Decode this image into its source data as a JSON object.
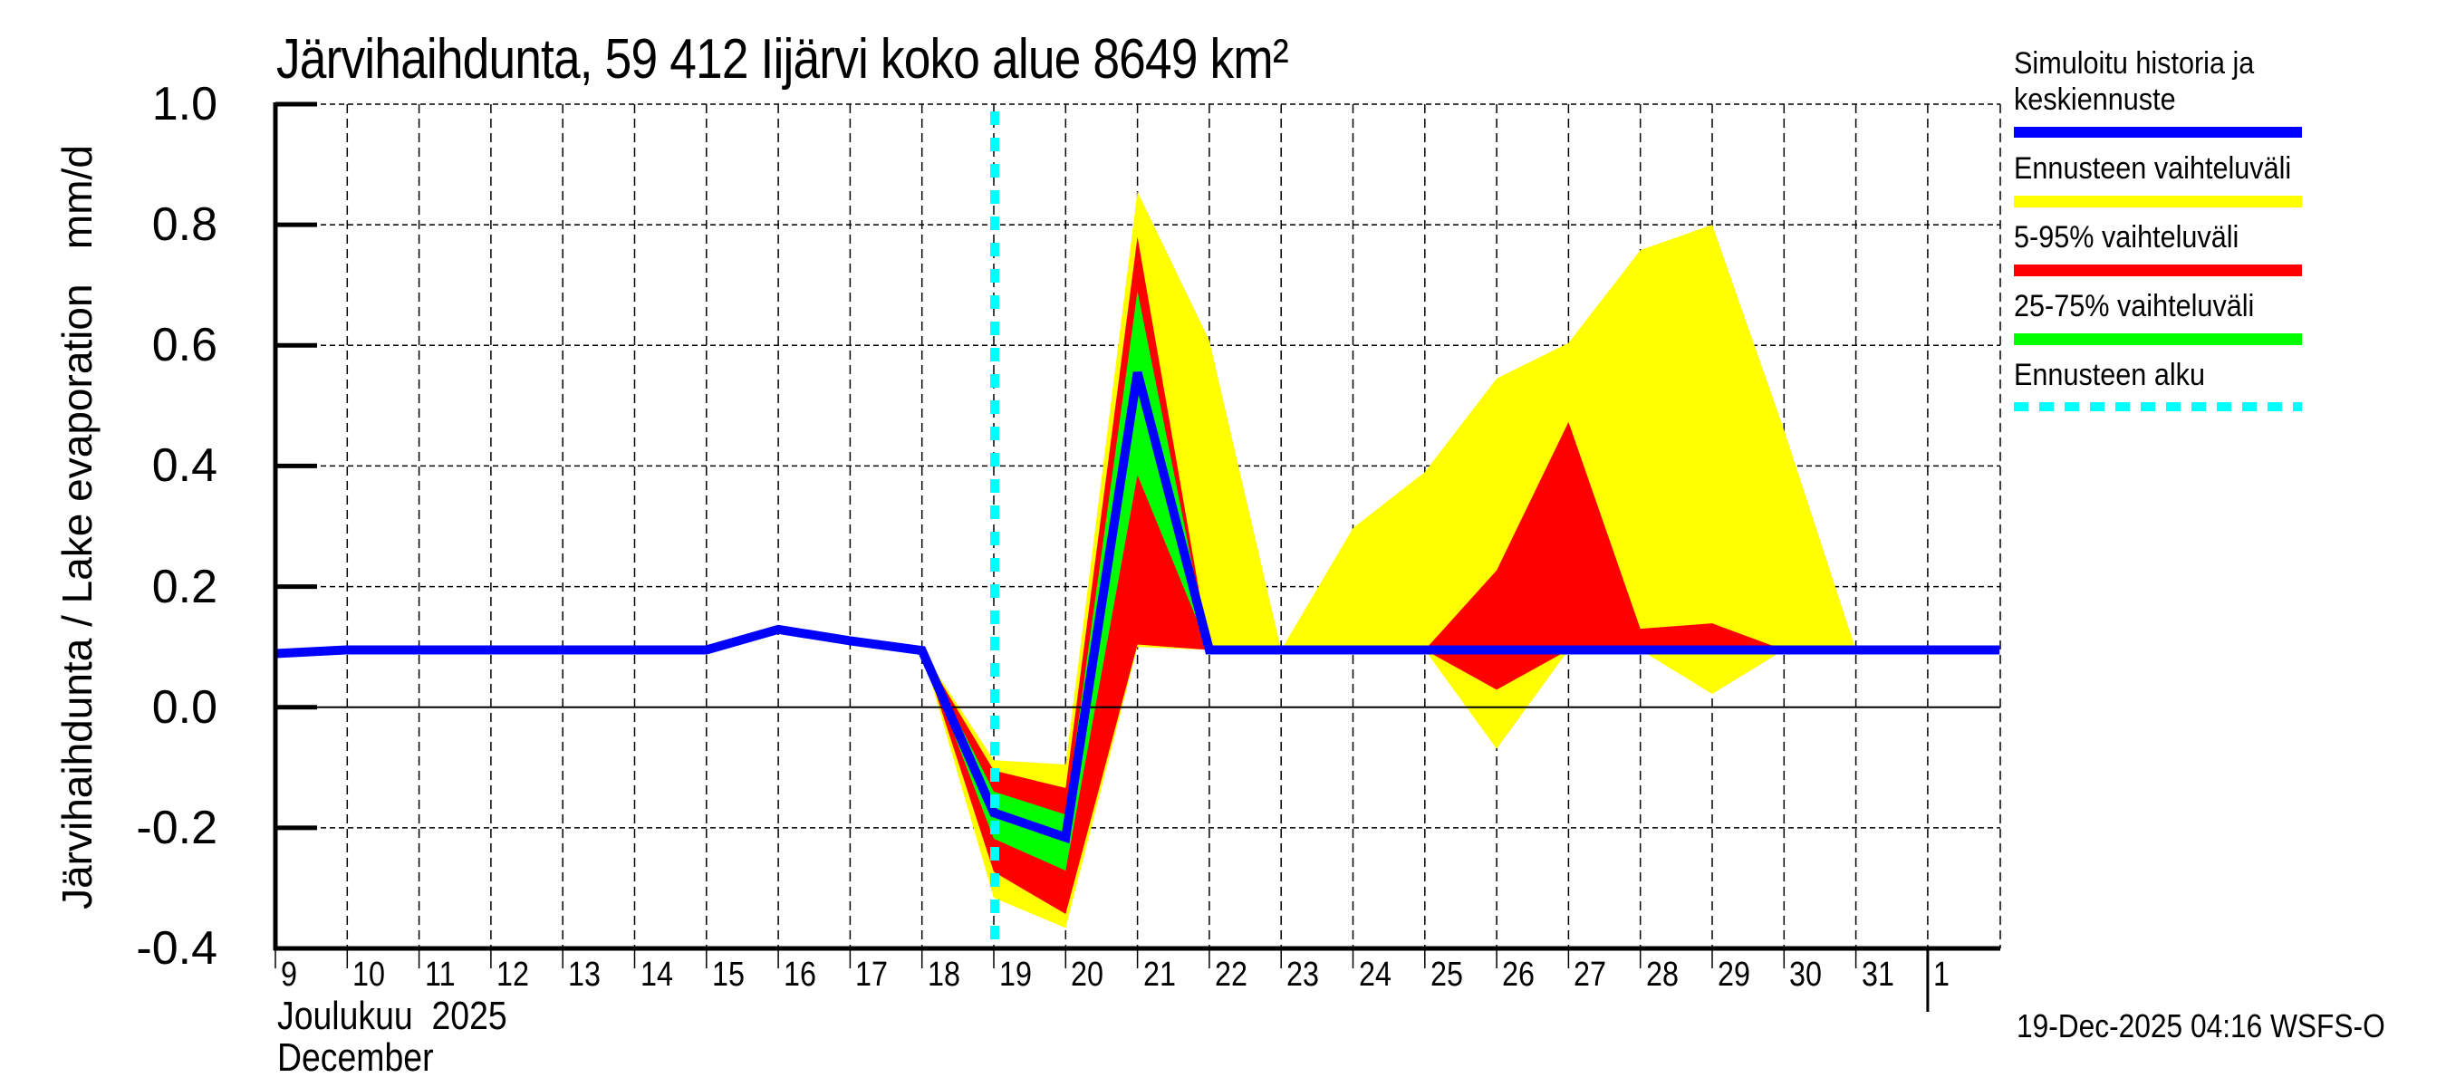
{
  "title": "Järvihaihdunta, 59 412 Iijärvi koko alue 8649 km²",
  "y_axis_label": "Järvihaihdunta / Lake evaporation   mm/d",
  "x_axis": {
    "month_fi": "Joulukuu  2025",
    "month_en": "December"
  },
  "timestamp": "19-Dec-2025 04:16 WSFS-O",
  "legend": {
    "items": [
      {
        "label": "Simuloitu historia ja keskiennuste",
        "line1": "Simuloitu historia ja",
        "line2": "keskiennuste",
        "color": "#0000ff",
        "style": "solid"
      },
      {
        "label": "Ennusteen vaihteluväli",
        "color": "#ffff00",
        "style": "solid"
      },
      {
        "label": "5-95% vaihteluväli",
        "color": "#ff0000",
        "style": "solid"
      },
      {
        "label": "25-75% vaihteluväli",
        "color": "#00ff00",
        "style": "solid"
      },
      {
        "label": "Ennusteen alku",
        "color": "#00ffff",
        "style": "dashed"
      }
    ]
  },
  "colors": {
    "mean": "#0000ff",
    "full_range": "#ffff00",
    "p5_95": "#ff0000",
    "p25_75": "#00ff00",
    "forecast_start": "#00ffff",
    "grid": "#000000"
  },
  "chart_data": {
    "type": "area",
    "title": "Järvihaihdunta, 59 412 Iijärvi koko alue 8649 km²",
    "xlabel": "Joulukuu 2025 / December",
    "ylabel": "Järvihaihdunta / Lake evaporation mm/d",
    "ylim": [
      -0.4,
      1.0
    ],
    "yticks": [
      1.0,
      0.8,
      0.6,
      0.4,
      0.2,
      0.0,
      -0.2,
      -0.4
    ],
    "ytick_labels": [
      "1.0",
      "0.8",
      "0.6",
      "0.4",
      "0.2",
      "0.0",
      "-0.2",
      "-0.4"
    ],
    "xlim": [
      9,
      33
    ],
    "xticks": [
      9,
      10,
      11,
      12,
      13,
      14,
      15,
      16,
      17,
      18,
      19,
      20,
      21,
      22,
      23,
      24,
      25,
      26,
      27,
      28,
      29,
      30,
      31,
      32
    ],
    "xtick_labels": [
      "9",
      "10",
      "11",
      "12",
      "13",
      "14",
      "15",
      "16",
      "17",
      "18",
      "19",
      "20",
      "21",
      "22",
      "23",
      "24",
      "25",
      "26",
      "27",
      "28",
      "29",
      "30",
      "31",
      "1"
    ],
    "grid": true,
    "forecast_start_x": 19.0,
    "month_separator_x": 32,
    "series": [
      {
        "name": "Simuloitu historia ja keskiennuste",
        "kind": "line",
        "x": [
          9,
          10,
          11,
          12,
          13,
          14,
          15,
          16,
          17,
          18,
          19,
          20,
          21,
          22,
          23,
          24,
          25,
          26,
          27,
          28,
          29,
          30,
          31,
          32,
          33
        ],
        "values": [
          0.089,
          0.095,
          0.095,
          0.095,
          0.095,
          0.095,
          0.095,
          0.129,
          0.11,
          0.094,
          -0.175,
          -0.216,
          0.555,
          0.095,
          0.095,
          0.095,
          0.095,
          0.095,
          0.095,
          0.095,
          0.095,
          0.095,
          0.095,
          0.095,
          0.095
        ]
      },
      {
        "name": "Ennusteen vaihteluväli",
        "kind": "band",
        "x": [
          18,
          19,
          20,
          21,
          22,
          23,
          24,
          25,
          26,
          27,
          28,
          29,
          30,
          31
        ],
        "upper": [
          0.094,
          -0.088,
          -0.095,
          0.855,
          0.608,
          0.095,
          0.297,
          0.39,
          0.545,
          0.604,
          0.758,
          0.8,
          0.46,
          0.095
        ],
        "lower": [
          0.094,
          -0.316,
          -0.366,
          0.1,
          0.095,
          0.095,
          0.095,
          0.095,
          -0.069,
          0.095,
          0.095,
          0.022,
          0.095,
          0.095
        ]
      },
      {
        "name": "5-95% vaihteluväli",
        "kind": "band",
        "x": [
          18,
          19,
          20,
          21,
          22,
          23,
          24,
          25,
          26,
          27,
          28,
          29,
          30
        ],
        "upper": [
          0.094,
          -0.105,
          -0.134,
          0.78,
          0.095,
          0.095,
          0.095,
          0.095,
          0.227,
          0.473,
          0.13,
          0.139,
          0.095
        ],
        "lower": [
          0.094,
          -0.273,
          -0.343,
          0.104,
          0.095,
          0.095,
          0.095,
          0.095,
          0.029,
          0.095,
          0.095,
          0.095,
          0.095
        ]
      },
      {
        "name": "25-75% vaihteluväli",
        "kind": "band",
        "x": [
          18,
          19,
          20,
          21,
          22
        ],
        "upper": [
          0.094,
          -0.14,
          -0.178,
          0.69,
          0.095
        ],
        "lower": [
          0.094,
          -0.218,
          -0.271,
          0.385,
          0.095
        ]
      }
    ]
  }
}
